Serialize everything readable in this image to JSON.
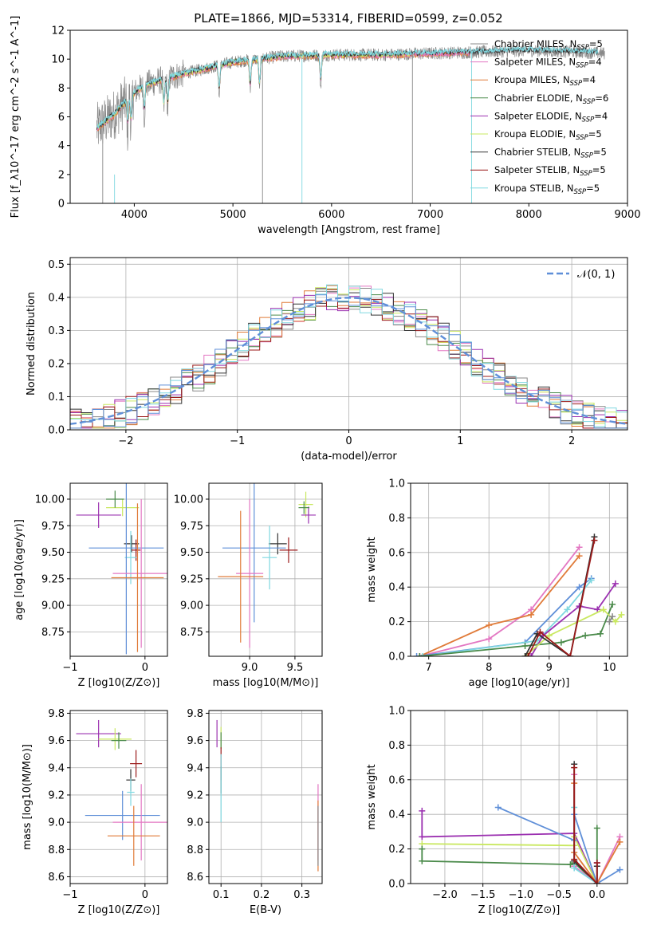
{
  "colors": {
    "Chabrier MILES": "#888888",
    "Salpeter MILES": "#e377c2",
    "Kroupa MILES": "#e07b39",
    "Chabrier ELODIE": "#4a8a4a",
    "Salpeter ELODIE": "#9b30b0",
    "Kroupa ELODIE": "#c9e860",
    "Chabrier STELIB": "#333333",
    "Salpeter STELIB": "#9b1a1a",
    "Kroupa STELIB": "#7fd8e0",
    "normal": "#5f8fd8"
  },
  "chart_data": [
    {
      "id": "spectrum",
      "type": "line",
      "title": "PLATE=1866, MJD=53314, FIBERID=0599, z=0.052",
      "xlabel": "wavelength [Angstrom, rest frame]",
      "ylabel": "Flux [f_λ10^-17 erg cm^-2 s^-1 A^-1]",
      "xlim": [
        3350,
        9000
      ],
      "ylim": [
        0,
        12
      ],
      "xticks": [
        4000,
        5000,
        6000,
        7000,
        8000,
        9000
      ],
      "yticks": [
        0,
        2,
        4,
        6,
        8,
        10,
        12
      ],
      "legend_position": "right",
      "data_wavelength_range": [
        3620,
        8770
      ],
      "continuum": [
        [
          3620,
          5.2
        ],
        [
          3800,
          6.2
        ],
        [
          3950,
          7.4
        ],
        [
          4100,
          8.2
        ],
        [
          4300,
          8.6
        ],
        [
          4500,
          9.0
        ],
        [
          5000,
          9.8
        ],
        [
          5500,
          10.2
        ],
        [
          6000,
          10.3
        ],
        [
          6500,
          10.3
        ],
        [
          7000,
          10.4
        ],
        [
          7500,
          10.5
        ],
        [
          8000,
          10.6
        ],
        [
          8500,
          10.5
        ],
        [
          8770,
          10.4
        ]
      ],
      "series": [
        {
          "key": "Chabrier MILES",
          "label": "Chabrier MILES, N",
          "n": "=5"
        },
        {
          "key": "Salpeter MILES",
          "label": "Salpeter MILES, N",
          "n": "=4"
        },
        {
          "key": "Kroupa MILES",
          "label": "Kroupa MILES, N",
          "n": "=4"
        },
        {
          "key": "Chabrier ELODIE",
          "label": "Chabrier ELODIE, N",
          "n": "=6"
        },
        {
          "key": "Salpeter ELODIE",
          "label": "Salpeter ELODIE, N",
          "n": "=4"
        },
        {
          "key": "Kroupa ELODIE",
          "label": "Kroupa ELODIE, N",
          "n": "=5"
        },
        {
          "key": "Chabrier STELIB",
          "label": "Chabrier STELIB, N",
          "n": "=5"
        },
        {
          "key": "Salpeter STELIB",
          "label": "Salpeter STELIB, N",
          "n": "=5"
        },
        {
          "key": "Kroupa STELIB",
          "label": "Kroupa STELIB, N",
          "n": "=5"
        }
      ],
      "legend_subscript": "SSP"
    },
    {
      "id": "residuals",
      "type": "histogram",
      "xlabel": "(data-model)/error",
      "ylabel": "Normed distribution",
      "xlim": [
        -2.5,
        2.5
      ],
      "ylim": [
        0,
        0.52
      ],
      "xticks": [
        -2,
        -1,
        0,
        1,
        2
      ],
      "xtick_labels": [
        "−2",
        "−1",
        "0",
        "1",
        "2"
      ],
      "yticks": [
        0.0,
        0.1,
        0.2,
        0.3,
        0.4,
        0.5
      ],
      "ytick_labels": [
        "0.0",
        "0.1",
        "0.2",
        "0.3",
        "0.4",
        "0.5"
      ],
      "legend": "𝒩(0, 1)",
      "legend_position": "top-right",
      "bin_width": 0.1
    },
    {
      "id": "age-vs-Z",
      "type": "errorbar",
      "xlabel": "Z [log10(Z/Z⊙)]",
      "ylabel": "age  [log10(age/yr)]",
      "xlim": [
        -1.0,
        0.3
      ],
      "ylim": [
        8.52,
        10.15
      ],
      "xticks": [
        -1,
        0
      ],
      "xtick_labels": [
        "−1",
        "0"
      ],
      "yticks": [
        8.75,
        9.0,
        9.25,
        9.5,
        9.75,
        10.0
      ],
      "ytick_labels": [
        "8.75",
        "9.00",
        "9.25",
        "9.50",
        "9.75",
        "10.00"
      ],
      "points": [
        {
          "series": "Salpeter ELODIE",
          "x": -0.62,
          "xerr": 0.3,
          "y": 9.85,
          "yerr": 0.12
        },
        {
          "series": "Kroupa ELODIE",
          "x": -0.3,
          "xerr": 0.22,
          "y": 9.92,
          "yerr": 0.08
        },
        {
          "series": "Chabrier ELODIE",
          "x": -0.4,
          "xerr": 0.12,
          "y": 10.0,
          "yerr": 0.08
        },
        {
          "series": "Chabrier STELIB",
          "x": -0.18,
          "xerr": 0.1,
          "y": 9.58,
          "yerr": 0.08
        },
        {
          "series": "Salpeter STELIB",
          "x": -0.12,
          "xerr": 0.06,
          "y": 9.52,
          "yerr": 0.1
        },
        {
          "series": "Kroupa STELIB",
          "x": -0.19,
          "xerr": 0.08,
          "y": 9.45,
          "yerr": 0.25
        },
        {
          "series": "normal",
          "x": -0.25,
          "xerr": 0.5,
          "y": 9.54,
          "yerr": 1.0
        },
        {
          "series": "Salpeter MILES",
          "x": -0.05,
          "xerr": 0.38,
          "y": 9.3,
          "yerr": 0.7
        },
        {
          "series": "Kroupa MILES",
          "x": -0.1,
          "xerr": 0.35,
          "y": 9.26,
          "yerr": 0.7
        }
      ]
    },
    {
      "id": "age-vs-mass",
      "type": "errorbar",
      "xlabel": "mass [log10(M/M⊙)]",
      "ylabel": "",
      "xlim": [
        8.55,
        9.8
      ],
      "ylim": [
        8.52,
        10.15
      ],
      "xticks": [
        9.0,
        9.5
      ],
      "xtick_labels": [
        "9.0",
        "9.5"
      ],
      "yticks": [
        8.75,
        9.0,
        9.25,
        9.5,
        9.75,
        10.0
      ],
      "ytick_labels": [
        "8.75",
        "9.00",
        "9.25",
        "9.50",
        "9.75",
        "10.00"
      ],
      "points": [
        {
          "series": "Kroupa ELODIE",
          "x": 9.62,
          "xerr": 0.08,
          "y": 9.95,
          "yerr": 0.12
        },
        {
          "series": "Salpeter ELODIE",
          "x": 9.65,
          "xerr": 0.08,
          "y": 9.85,
          "yerr": 0.08
        },
        {
          "series": "Chabrier ELODIE",
          "x": 9.6,
          "xerr": 0.06,
          "y": 9.92,
          "yerr": 0.06
        },
        {
          "series": "Chabrier STELIB",
          "x": 9.31,
          "xerr": 0.1,
          "y": 9.58,
          "yerr": 0.1
        },
        {
          "series": "Salpeter STELIB",
          "x": 9.43,
          "xerr": 0.1,
          "y": 9.52,
          "yerr": 0.12
        },
        {
          "series": "Kroupa STELIB",
          "x": 9.22,
          "xerr": 0.08,
          "y": 9.45,
          "yerr": 0.3
        },
        {
          "series": "normal",
          "x": 9.05,
          "xerr": 0.35,
          "y": 9.54,
          "yerr": 0.7
        },
        {
          "series": "Salpeter MILES",
          "x": 9.0,
          "xerr": 0.15,
          "y": 9.3,
          "yerr": 0.7
        },
        {
          "series": "Kroupa MILES",
          "x": 8.9,
          "xerr": 0.25,
          "y": 9.27,
          "yerr": 0.62
        }
      ]
    },
    {
      "id": "mass-weight-vs-age",
      "type": "line",
      "xlabel": "age  [log10(age/yr)]",
      "ylabel": "mass weight",
      "xlim": [
        6.7,
        10.3
      ],
      "ylim": [
        0,
        1.0
      ],
      "xticks": [
        7,
        8,
        9,
        10
      ],
      "xtick_labels": [
        "7",
        "8",
        "9",
        "10"
      ],
      "yticks": [
        0.0,
        0.2,
        0.4,
        0.6,
        0.8,
        1.0
      ],
      "ytick_labels": [
        "0.0",
        "0.2",
        "0.4",
        "0.6",
        "0.8",
        "1.0"
      ],
      "series": [
        {
          "series": "Salpeter MILES",
          "x": [
            6.85,
            8.0,
            8.7,
            9.5
          ],
          "y": [
            0.0,
            0.1,
            0.27,
            0.63
          ]
        },
        {
          "series": "Kroupa MILES",
          "x": [
            6.85,
            8.0,
            8.7,
            9.5
          ],
          "y": [
            0.0,
            0.18,
            0.24,
            0.58
          ]
        },
        {
          "series": "normal",
          "x": [
            6.8,
            8.6,
            9.5,
            9.7
          ],
          "y": [
            0.0,
            0.08,
            0.4,
            0.45
          ]
        },
        {
          "series": "Kroupa STELIB",
          "x": [
            6.9,
            8.8,
            9.3,
            9.7
          ],
          "y": [
            0.0,
            0.09,
            0.27,
            0.44
          ]
        },
        {
          "series": "Chabrier ELODIE",
          "x": [
            6.85,
            8.6,
            9.2,
            9.6,
            9.85,
            10.05
          ],
          "y": [
            0.0,
            0.06,
            0.08,
            0.12,
            0.13,
            0.3
          ]
        },
        {
          "series": "Salpeter ELODIE",
          "x": [
            8.7,
            8.9,
            9.5,
            9.8,
            10.1
          ],
          "y": [
            0.0,
            0.12,
            0.29,
            0.27,
            0.42
          ]
        },
        {
          "series": "Kroupa ELODIE",
          "x": [
            8.6,
            9.0,
            9.9,
            10.1,
            10.2
          ],
          "y": [
            0.0,
            0.12,
            0.27,
            0.2,
            0.24
          ]
        },
        {
          "series": "Chabrier STELIB",
          "x": [
            8.6,
            8.8,
            9.35,
            9.75
          ],
          "y": [
            0.0,
            0.13,
            0.0,
            0.69
          ]
        },
        {
          "series": "Salpeter STELIB",
          "x": [
            8.65,
            8.85,
            9.35,
            9.75
          ],
          "y": [
            0.0,
            0.14,
            0.0,
            0.67
          ]
        },
        {
          "series": "Chabrier MILES",
          "x": [
            10.0,
            10.05
          ],
          "y": [
            0.2,
            0.23
          ]
        }
      ]
    },
    {
      "id": "mass-vs-Z",
      "type": "errorbar",
      "xlabel": "Z [log10(Z/Z⊙)]",
      "ylabel": "mass [log10(M/M⊙)]",
      "xlim": [
        -1.0,
        0.3
      ],
      "ylim": [
        8.55,
        9.82
      ],
      "xticks": [
        -1,
        0
      ],
      "xtick_labels": [
        "−1",
        "0"
      ],
      "yticks": [
        8.6,
        8.8,
        9.0,
        9.2,
        9.4,
        9.6,
        9.8
      ],
      "ytick_labels": [
        "8.6",
        "8.8",
        "9.0",
        "9.2",
        "9.4",
        "9.6",
        "9.8"
      ],
      "points": [
        {
          "series": "Salpeter ELODIE",
          "x": -0.62,
          "xerr": 0.3,
          "y": 9.65,
          "yerr": 0.1
        },
        {
          "series": "Kroupa ELODIE",
          "x": -0.4,
          "xerr": 0.22,
          "y": 9.61,
          "yerr": 0.08
        },
        {
          "series": "Chabrier ELODIE",
          "x": -0.35,
          "xerr": 0.1,
          "y": 9.6,
          "yerr": 0.06
        },
        {
          "series": "Salpeter STELIB",
          "x": -0.12,
          "xerr": 0.08,
          "y": 9.43,
          "yerr": 0.1
        },
        {
          "series": "Chabrier STELIB",
          "x": -0.19,
          "xerr": 0.06,
          "y": 9.31,
          "yerr": 0.08
        },
        {
          "series": "Kroupa STELIB",
          "x": -0.19,
          "xerr": 0.05,
          "y": 9.22,
          "yerr": 0.1
        },
        {
          "series": "normal",
          "x": -0.3,
          "xerr": 0.5,
          "y": 9.05,
          "yerr": 0.18
        },
        {
          "series": "Salpeter MILES",
          "x": -0.05,
          "xerr": 0.38,
          "y": 9.0,
          "yerr": 0.28
        },
        {
          "series": "Kroupa MILES",
          "x": -0.15,
          "xerr": 0.35,
          "y": 8.9,
          "yerr": 0.22
        }
      ]
    },
    {
      "id": "mass-vs-ebv",
      "type": "errorbar",
      "xlabel": "E(B-V)",
      "ylabel": "",
      "xlim": [
        0.07,
        0.35
      ],
      "ylim": [
        8.55,
        9.82
      ],
      "xticks": [
        0.1,
        0.2,
        0.3
      ],
      "xtick_labels": [
        "0.1",
        "0.2",
        "0.3"
      ],
      "yticks": [
        8.6,
        8.8,
        9.0,
        9.2,
        9.4,
        9.6,
        9.8
      ],
      "ytick_labels": [
        "8.6",
        "8.8",
        "9.0",
        "9.2",
        "9.4",
        "9.6",
        "9.8"
      ],
      "points": [
        {
          "series": "Salpeter ELODIE",
          "x": 0.09,
          "xerr": 0.0,
          "y": 9.65,
          "yerr": 0.1
        },
        {
          "series": "Kroupa ELODIE",
          "x": 0.1,
          "xerr": 0.0,
          "y": 9.62,
          "yerr": 0.08
        },
        {
          "series": "Chabrier ELODIE",
          "x": 0.1,
          "xerr": 0.0,
          "y": 9.6,
          "yerr": 0.06
        },
        {
          "series": "Salpeter STELIB",
          "x": 0.1,
          "xerr": 0.0,
          "y": 9.43,
          "yerr": 0.12
        },
        {
          "series": "Chabrier STELIB",
          "x": 0.1,
          "xerr": 0.0,
          "y": 9.31,
          "yerr": 0.1
        },
        {
          "series": "Kroupa STELIB",
          "x": 0.1,
          "xerr": 0.0,
          "y": 9.25,
          "yerr": 0.25
        },
        {
          "series": "Salpeter MILES",
          "x": 0.34,
          "xerr": 0.0,
          "y": 9.0,
          "yerr": 0.28
        },
        {
          "series": "Kroupa MILES",
          "x": 0.34,
          "xerr": 0.0,
          "y": 8.9,
          "yerr": 0.26
        },
        {
          "series": "Chabrier MILES",
          "x": 0.34,
          "xerr": 0.0,
          "y": 8.9,
          "yerr": 0.22
        }
      ]
    },
    {
      "id": "mass-weight-vs-Z",
      "type": "line",
      "xlabel": "Z [log10(Z/Z⊙)]",
      "ylabel": "mass weight",
      "xlim": [
        -2.45,
        0.4
      ],
      "ylim": [
        0,
        1.0
      ],
      "xticks": [
        -2.0,
        -1.5,
        -1.0,
        -0.5,
        0.0
      ],
      "xtick_labels": [
        "−2.0",
        "−1.5",
        "−1.0",
        "−0.5",
        "0.0"
      ],
      "yticks": [
        0.0,
        0.2,
        0.4,
        0.6,
        0.8,
        1.0
      ],
      "ytick_labels": [
        "0.0",
        "0.2",
        "0.4",
        "0.6",
        "0.8",
        "1.0"
      ],
      "series": [
        {
          "series": "Salpeter ELODIE",
          "x": [
            -2.3,
            -2.3,
            -0.3,
            0.0,
            0.0
          ],
          "y": [
            0.42,
            0.27,
            0.29,
            0.0,
            0.12
          ]
        },
        {
          "series": "Kroupa ELODIE",
          "x": [
            -2.3,
            -0.3,
            -0.3,
            0.0
          ],
          "y": [
            0.23,
            0.22,
            0.27,
            0.0
          ]
        },
        {
          "series": "Chabrier ELODIE",
          "x": [
            -2.3,
            -2.3,
            -0.35,
            -0.3,
            0.0,
            0.0
          ],
          "y": [
            0.2,
            0.13,
            0.11,
            0.12,
            0.0,
            0.32
          ]
        },
        {
          "series": "normal",
          "x": [
            -1.3,
            -0.3,
            -0.3,
            0.0,
            0.3
          ],
          "y": [
            0.44,
            0.25,
            0.4,
            0.0,
            0.08
          ]
        },
        {
          "series": "Salpeter MILES",
          "x": [
            -0.3,
            -0.3,
            0.0,
            0.3
          ],
          "y": [
            0.63,
            0.1,
            0.0,
            0.27
          ]
        },
        {
          "series": "Kroupa MILES",
          "x": [
            -0.3,
            -0.3,
            0.0,
            0.3
          ],
          "y": [
            0.58,
            0.18,
            0.0,
            0.24
          ]
        },
        {
          "series": "Kroupa STELIB",
          "x": [
            -0.3,
            -0.3,
            0.0
          ],
          "y": [
            0.44,
            0.09,
            0.0
          ]
        },
        {
          "series": "Chabrier STELIB",
          "x": [
            -0.3,
            -0.3,
            0.0,
            0.0
          ],
          "y": [
            0.69,
            0.13,
            0.0,
            0.1
          ]
        },
        {
          "series": "Salpeter STELIB",
          "x": [
            -0.3,
            -0.3,
            0.0,
            0.0
          ],
          "y": [
            0.67,
            0.14,
            0.0,
            0.12
          ]
        }
      ]
    }
  ]
}
